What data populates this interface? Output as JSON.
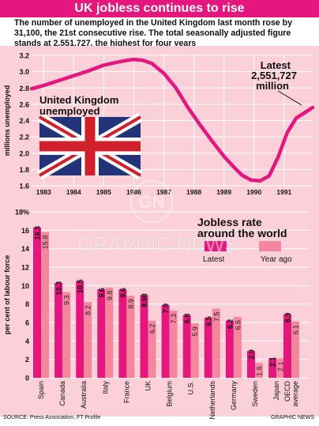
{
  "header": {
    "title": "UK jobless continues to rise",
    "intro": "The number of unemployed in the United Kingdom last month rose by 31,100, the 21st consecutive rise. The total seasonally adjusted figure stands at 2,551,727, the highest for four years"
  },
  "footer": {
    "source": "SOURCE: Press Association, FT Profile",
    "credit": "GRAPHIC NEWS"
  },
  "watermark": {
    "letters": "GN",
    "text": "GRAPHIC NEWS"
  },
  "colors": {
    "accent": "#e5177e",
    "bar_year_ago": "#f4879f",
    "panel_bg": "#fbd0d9",
    "flag_blue": "#23337a",
    "flag_red": "#d21f2c"
  },
  "icons": {
    "flag": "union-jack-icon"
  },
  "chart_data": [
    {
      "type": "line",
      "ylabel": "millions unemployed",
      "ylim": [
        1.6,
        3.2
      ],
      "yticks": [
        "1.6",
        "1.8",
        "2.0",
        "2.2",
        "2.4",
        "2.6",
        "2.8",
        "3.0",
        "3.2"
      ],
      "xlim": [
        1982.6,
        1991.95
      ],
      "xticks": [
        "1983",
        "1984",
        "1985",
        "1986",
        "1987",
        "1988",
        "1989",
        "1990",
        "1991"
      ],
      "grid": true,
      "series_label": "United Kingdom unemployed",
      "annotation": "Latest 2,551,727 million",
      "series": [
        {
          "x": [
            1982.6,
            1983.0,
            1983.5,
            1984.0,
            1984.5,
            1985.0,
            1985.5,
            1985.8,
            1986.0,
            1986.3,
            1986.6,
            1987.0,
            1987.4,
            1987.8,
            1988.2,
            1988.6,
            1989.0,
            1989.3,
            1989.6,
            1989.9,
            1990.2,
            1990.5,
            1990.8,
            1991.1,
            1991.4,
            1991.7,
            1991.95
          ],
          "y": [
            2.79,
            2.83,
            2.89,
            2.95,
            3.01,
            3.08,
            3.12,
            3.14,
            3.15,
            3.14,
            3.1,
            2.98,
            2.8,
            2.56,
            2.35,
            2.15,
            1.96,
            1.84,
            1.73,
            1.67,
            1.66,
            1.72,
            1.95,
            2.25,
            2.43,
            2.5,
            2.56
          ]
        }
      ]
    },
    {
      "type": "bar",
      "title": "Jobless rate around the world",
      "ylabel": "per cent of labour force",
      "ylim": [
        0,
        18
      ],
      "yticks": [
        "0",
        "2",
        "4",
        "6",
        "8",
        "10",
        "12",
        "14",
        "16",
        "18%"
      ],
      "grid": true,
      "legend_position": "top-right",
      "categories": [
        "Spain",
        "Canada",
        "Australia",
        "Italy",
        "France",
        "UK",
        "Belgium",
        "U.S.",
        "Netherlands",
        "Germany",
        "Sweden",
        "Japan",
        "OECD average"
      ],
      "series": [
        {
          "name": "Latest",
          "values": [
            16.3,
            10.3,
            10.5,
            9.6,
            9.6,
            8.98,
            7.9,
            6.8,
            6.5,
            6.2,
            2.9,
            2.1,
            6.9
          ]
        },
        {
          "name": "Year ago",
          "values": [
            15.8,
            9.3,
            8.2,
            9.8,
            8.9,
            6.2,
            7.3,
            5.9,
            7.5,
            6.6,
            1.6,
            2.1,
            6.1
          ]
        }
      ],
      "value_labels": {
        "latest": [
          "16.3",
          "10.3",
          "10.5",
          "9.6",
          "9.6",
          "8.98",
          "7.9",
          "6.8",
          "6.5",
          "6.2",
          "2.9",
          "2.1",
          "6.9"
        ],
        "year_ago": [
          "15.8",
          "9.3",
          "8.2",
          "9.8",
          "8.9",
          "6.2",
          "7.3",
          "5.9",
          "7.5",
          "6.6",
          "1.6",
          "2.1",
          "6.1"
        ]
      }
    }
  ]
}
